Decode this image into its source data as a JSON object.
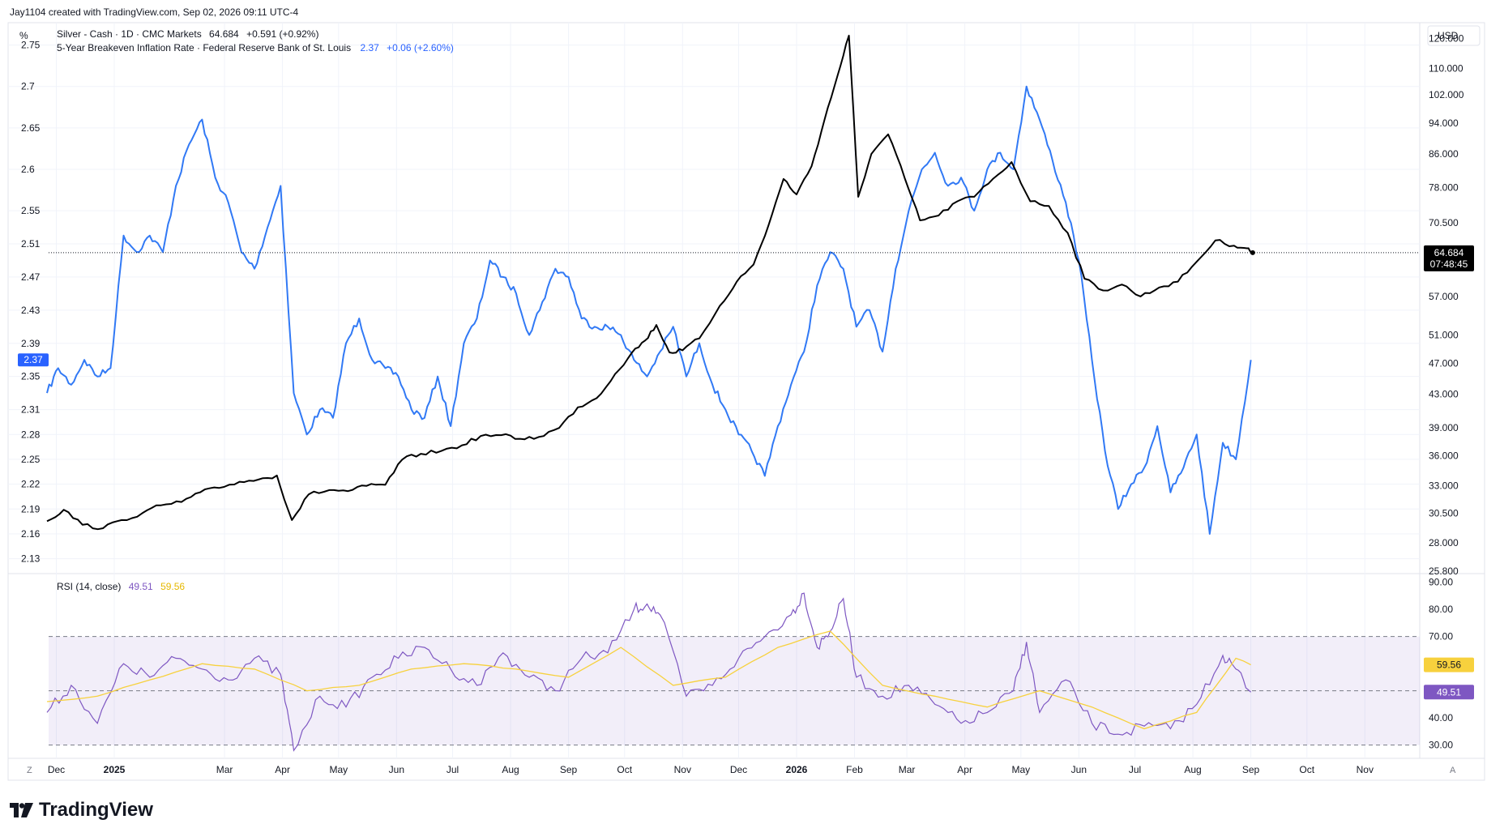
{
  "header": {
    "credit": "Jay1104 created with TradingView.com, Sep 02, 2026 09:11 UTC-4",
    "left_unit": "%",
    "right_unit": "USD",
    "legend_silver": {
      "name": "Silver - Cash · 1D · CMC Markets",
      "last": "64.684",
      "change": "+0.591 (+0.92%)"
    },
    "legend_breakeven": {
      "name": "5-Year Breakeven Inflation Rate · Federal Reserve Bank of St. Louis",
      "last": "2.37",
      "change": "+0.06 (+2.60%)"
    },
    "legend_rsi": {
      "name": "RSI (14, close)",
      "rsi": "49.51",
      "ma": "59.56"
    }
  },
  "footer": {
    "brand": "TradingView",
    "left_btn": "Z",
    "right_btn": "A"
  },
  "colors": {
    "silver": "#000000",
    "breakeven": "#2962ff",
    "breakeven_line": "#3179f5",
    "rsi": "#7e57c2",
    "rsi_ma": "#f7d13d",
    "band": "#7e57c2",
    "grid": "#f0f3fa",
    "price_label_bg": "#000000"
  },
  "chart_data": [
    {
      "type": "line",
      "title": "Silver - Cash · 1D · CMC Markets",
      "axis": "right",
      "unit": "USD",
      "y_scale": "log",
      "ylim": [
        25.8,
        125
      ],
      "right_ticks": [
        "120.000",
        "110.000",
        "102.000",
        "94.000",
        "86.000",
        "78.000",
        "70.500",
        "64.000",
        "57.000",
        "51.000",
        "47.000",
        "43.000",
        "39.000",
        "36.000",
        "33.000",
        "30.500",
        "28.000",
        "25.800"
      ],
      "last_value": "64.684",
      "countdown": "07:48:45",
      "series": [
        {
          "name": "Silver - Cash",
          "x": [
            "2024-11-26",
            "2024-12-05",
            "2024-12-15",
            "2024-12-26",
            "2025-01-05",
            "2025-01-16",
            "2025-01-26",
            "2025-02-06",
            "2025-02-16",
            "2025-02-26",
            "2025-03-09",
            "2025-03-19",
            "2025-03-29",
            "2025-04-06",
            "2025-04-15",
            "2025-04-26",
            "2025-05-06",
            "2025-05-16",
            "2025-05-26",
            "2025-06-04",
            "2025-06-14",
            "2025-06-25",
            "2025-07-06",
            "2025-07-16",
            "2025-07-27",
            "2025-08-06",
            "2025-08-16",
            "2025-08-27",
            "2025-09-06",
            "2025-09-16",
            "2025-09-26",
            "2025-10-05",
            "2025-10-12",
            "2025-10-18",
            "2025-10-25",
            "2025-11-01",
            "2025-11-10",
            "2025-11-21",
            "2025-11-30",
            "2025-12-09",
            "2025-12-17",
            "2025-12-25",
            "2026-01-01",
            "2026-01-09",
            "2026-01-16",
            "2026-01-23",
            "2026-01-29",
            "2026-02-03",
            "2026-02-10",
            "2026-02-19",
            "2026-02-28",
            "2026-03-08",
            "2026-03-18",
            "2026-03-28",
            "2026-04-06",
            "2026-04-16",
            "2026-04-26",
            "2026-05-06",
            "2026-05-16",
            "2026-05-26",
            "2026-06-04",
            "2026-06-14",
            "2026-06-24",
            "2026-07-04",
            "2026-07-14",
            "2026-07-24",
            "2026-08-03",
            "2026-08-13",
            "2026-08-23",
            "2026-08-30",
            "2026-09-02"
          ],
          "values": [
            29.8,
            30.8,
            29.5,
            29.2,
            29.9,
            30.5,
            31.2,
            31.5,
            32.4,
            32.8,
            33.4,
            33.6,
            34.0,
            29.9,
            32.2,
            32.6,
            32.5,
            33.0,
            33.1,
            35.6,
            36.2,
            36.5,
            37.1,
            38.1,
            38.2,
            37.8,
            38.0,
            39.0,
            41.4,
            42.5,
            45.6,
            48.5,
            50.2,
            52.5,
            48.5,
            48.8,
            50.5,
            55.5,
            59.5,
            62.5,
            70.0,
            80.0,
            76.5,
            83.0,
            95.0,
            108.0,
            121.0,
            76.0,
            86.0,
            91.0,
            80.0,
            71.0,
            72.0,
            75.0,
            76.0,
            80.0,
            84.0,
            75.0,
            74.0,
            68.5,
            60.0,
            58.0,
            59.0,
            57.0,
            58.5,
            59.5,
            63.0,
            67.0,
            66.0,
            65.5,
            64.684
          ]
        }
      ]
    },
    {
      "type": "line",
      "title": "5-Year Breakeven Inflation Rate · Federal Reserve Bank of St. Louis",
      "axis": "left",
      "unit": "%",
      "ylim": [
        2.115,
        2.775
      ],
      "left_ticks": [
        "2.75",
        "2.7",
        "2.65",
        "2.6",
        "2.55",
        "2.51",
        "2.47",
        "2.43",
        "2.39",
        "2.35",
        "2.31",
        "2.28",
        "2.25",
        "2.22",
        "2.19",
        "2.16",
        "2.13"
      ],
      "last_value": "2.37",
      "series": [
        {
          "name": "5-Year Breakeven Inflation Rate",
          "x": [
            "2024-11-26",
            "2024-12-02",
            "2024-12-09",
            "2024-12-16",
            "2024-12-23",
            "2024-12-30",
            "2025-01-06",
            "2025-01-13",
            "2025-01-20",
            "2025-01-27",
            "2025-02-03",
            "2025-02-10",
            "2025-02-17",
            "2025-02-24",
            "2025-03-03",
            "2025-03-10",
            "2025-03-17",
            "2025-03-24",
            "2025-03-31",
            "2025-04-07",
            "2025-04-14",
            "2025-04-21",
            "2025-04-28",
            "2025-05-05",
            "2025-05-12",
            "2025-05-19",
            "2025-05-26",
            "2025-06-02",
            "2025-06-09",
            "2025-06-16",
            "2025-06-23",
            "2025-06-30",
            "2025-07-07",
            "2025-07-14",
            "2025-07-21",
            "2025-07-28",
            "2025-08-04",
            "2025-08-11",
            "2025-08-18",
            "2025-08-25",
            "2025-09-01",
            "2025-09-08",
            "2025-09-15",
            "2025-09-22",
            "2025-09-29",
            "2025-10-06",
            "2025-10-13",
            "2025-10-20",
            "2025-10-27",
            "2025-11-03",
            "2025-11-10",
            "2025-11-17",
            "2025-11-24",
            "2025-12-01",
            "2025-12-08",
            "2025-12-15",
            "2025-12-22",
            "2025-12-29",
            "2026-01-05",
            "2026-01-12",
            "2026-01-19",
            "2026-01-26",
            "2026-02-02",
            "2026-02-09",
            "2026-02-16",
            "2026-02-23",
            "2026-03-02",
            "2026-03-09",
            "2026-03-16",
            "2026-03-23",
            "2026-03-30",
            "2026-04-06",
            "2026-04-13",
            "2026-04-20",
            "2026-04-27",
            "2026-05-04",
            "2026-05-11",
            "2026-05-18",
            "2026-05-25",
            "2026-06-01",
            "2026-06-08",
            "2026-06-15",
            "2026-06-22",
            "2026-06-29",
            "2026-07-06",
            "2026-07-13",
            "2026-07-20",
            "2026-07-27",
            "2026-08-03",
            "2026-08-10",
            "2026-08-17",
            "2026-08-24",
            "2026-09-01"
          ],
          "values": [
            2.33,
            2.36,
            2.34,
            2.37,
            2.35,
            2.36,
            2.52,
            2.5,
            2.52,
            2.5,
            2.58,
            2.63,
            2.66,
            2.59,
            2.56,
            2.5,
            2.48,
            2.53,
            2.58,
            2.33,
            2.28,
            2.31,
            2.3,
            2.39,
            2.42,
            2.37,
            2.36,
            2.35,
            2.31,
            2.3,
            2.35,
            2.29,
            2.39,
            2.42,
            2.49,
            2.47,
            2.45,
            2.4,
            2.44,
            2.48,
            2.47,
            2.42,
            2.41,
            2.41,
            2.4,
            2.37,
            2.35,
            2.38,
            2.41,
            2.35,
            2.39,
            2.34,
            2.31,
            2.28,
            2.26,
            2.23,
            2.29,
            2.34,
            2.38,
            2.46,
            2.5,
            2.48,
            2.41,
            2.43,
            2.38,
            2.48,
            2.55,
            2.6,
            2.62,
            2.58,
            2.59,
            2.55,
            2.6,
            2.62,
            2.6,
            2.7,
            2.66,
            2.61,
            2.56,
            2.49,
            2.37,
            2.26,
            2.19,
            2.22,
            2.24,
            2.29,
            2.21,
            2.24,
            2.28,
            2.16,
            2.27,
            2.25,
            2.37
          ]
        }
      ]
    },
    {
      "type": "line",
      "title": "RSI (14, close)",
      "ylim": [
        26,
        92
      ],
      "ticks": [
        "90.00",
        "80.00",
        "70.00",
        "40.00",
        "30.00"
      ],
      "upper_band": 70,
      "middle_band": 50,
      "lower_band": 30,
      "series": [
        {
          "name": "RSI",
          "last": "49.51",
          "x": [
            "2024-11-26",
            "2024-12-09",
            "2024-12-23",
            "2025-01-06",
            "2025-01-20",
            "2025-02-03",
            "2025-02-17",
            "2025-03-03",
            "2025-03-17",
            "2025-03-31",
            "2025-04-07",
            "2025-04-21",
            "2025-05-05",
            "2025-05-19",
            "2025-06-02",
            "2025-06-16",
            "2025-06-30",
            "2025-07-14",
            "2025-07-28",
            "2025-08-11",
            "2025-08-25",
            "2025-09-08",
            "2025-09-22",
            "2025-10-06",
            "2025-10-13",
            "2025-10-20",
            "2025-11-03",
            "2025-11-17",
            "2025-12-01",
            "2025-12-15",
            "2025-12-29",
            "2026-01-05",
            "2026-01-12",
            "2026-01-19",
            "2026-01-26",
            "2026-02-02",
            "2026-02-16",
            "2026-03-02",
            "2026-03-16",
            "2026-03-30",
            "2026-04-13",
            "2026-04-27",
            "2026-05-04",
            "2026-05-11",
            "2026-05-25",
            "2026-06-08",
            "2026-06-22",
            "2026-07-06",
            "2026-07-20",
            "2026-08-03",
            "2026-08-17",
            "2026-08-24",
            "2026-09-01"
          ],
          "values": [
            42,
            52,
            38,
            60,
            55,
            62,
            58,
            54,
            62,
            56,
            28,
            48,
            44,
            55,
            62,
            66,
            58,
            52,
            64,
            55,
            50,
            62,
            64,
            80,
            82,
            78,
            48,
            52,
            62,
            70,
            78,
            86,
            66,
            72,
            84,
            55,
            48,
            52,
            45,
            38,
            42,
            50,
            68,
            42,
            54,
            38,
            34,
            37,
            36,
            45,
            63,
            58,
            49.51
          ]
        },
        {
          "name": "RSI-based MA",
          "last": "59.56",
          "x": [
            "2024-11-26",
            "2024-12-23",
            "2025-01-20",
            "2025-02-17",
            "2025-03-17",
            "2025-04-14",
            "2025-05-12",
            "2025-06-09",
            "2025-07-07",
            "2025-08-04",
            "2025-09-01",
            "2025-09-29",
            "2025-10-27",
            "2025-11-24",
            "2025-12-22",
            "2026-01-19",
            "2026-02-16",
            "2026-03-16",
            "2026-04-13",
            "2026-05-11",
            "2026-06-08",
            "2026-07-06",
            "2026-08-03",
            "2026-08-24",
            "2026-09-01"
          ],
          "values": [
            46,
            48,
            54,
            60,
            58,
            50,
            52,
            58,
            60,
            58,
            55,
            66,
            52,
            55,
            66,
            72,
            52,
            48,
            44,
            50,
            44,
            36,
            42,
            62,
            59.56
          ]
        }
      ]
    }
  ],
  "x_axis": {
    "ticks": [
      {
        "label": "Dec",
        "date": "2024-12-01",
        "bold": false
      },
      {
        "label": "2025",
        "date": "2025-01-01",
        "bold": true
      },
      {
        "label": "Mar",
        "date": "2025-03-01",
        "bold": false
      },
      {
        "label": "Apr",
        "date": "2025-04-01",
        "bold": false
      },
      {
        "label": "May",
        "date": "2025-05-01",
        "bold": false
      },
      {
        "label": "Jun",
        "date": "2025-06-01",
        "bold": false
      },
      {
        "label": "Jul",
        "date": "2025-07-01",
        "bold": false
      },
      {
        "label": "Aug",
        "date": "2025-08-01",
        "bold": false
      },
      {
        "label": "Sep",
        "date": "2025-09-01",
        "bold": false
      },
      {
        "label": "Oct",
        "date": "2025-10-01",
        "bold": false
      },
      {
        "label": "Nov",
        "date": "2025-11-01",
        "bold": false
      },
      {
        "label": "Dec",
        "date": "2025-12-01",
        "bold": false
      },
      {
        "label": "2026",
        "date": "2026-01-01",
        "bold": true
      },
      {
        "label": "Feb",
        "date": "2026-02-01",
        "bold": false
      },
      {
        "label": "Mar",
        "date": "2026-03-01",
        "bold": false
      },
      {
        "label": "Apr",
        "date": "2026-04-01",
        "bold": false
      },
      {
        "label": "May",
        "date": "2026-05-01",
        "bold": false
      },
      {
        "label": "Jun",
        "date": "2026-06-01",
        "bold": false
      },
      {
        "label": "Jul",
        "date": "2026-07-01",
        "bold": false
      },
      {
        "label": "Aug",
        "date": "2026-08-01",
        "bold": false
      },
      {
        "label": "Sep",
        "date": "2026-09-01",
        "bold": false
      },
      {
        "label": "Oct",
        "date": "2026-10-01",
        "bold": false
      },
      {
        "label": "Nov",
        "date": "2026-11-01",
        "bold": false
      }
    ]
  }
}
